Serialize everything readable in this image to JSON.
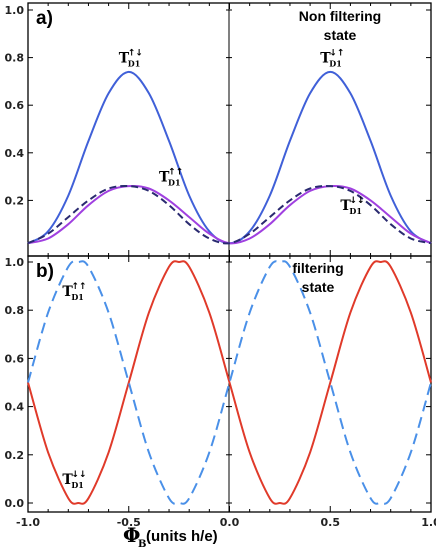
{
  "chart_data": [
    {
      "type": "line",
      "panel_label": "a)",
      "annotation": "Non filtering\nstate",
      "xlim": [
        -1,
        1
      ],
      "ylim": [
        0,
        1
      ],
      "yticks": [
        "0.2",
        "0.4",
        "0.6",
        "0.8",
        "1.0"
      ],
      "colors": {
        "blue": "#4060d8",
        "purple": "#a040e0",
        "navy": "#2a2a70"
      },
      "curve_labels": [
        {
          "T": "T",
          "arrows": "↑↓",
          "sub": "D1",
          "at": [
            -0.5,
            0.8
          ]
        },
        {
          "T": "T",
          "arrows": "↑↑",
          "sub": "D1",
          "at": [
            -0.3,
            0.3
          ]
        },
        {
          "T": "T",
          "arrows": "↓↑",
          "sub": "D1",
          "at": [
            0.5,
            0.8
          ]
        },
        {
          "T": "T",
          "arrows": "↓↓",
          "sub": "D1",
          "at": [
            0.6,
            0.18
          ]
        }
      ],
      "series": [
        {
          "style": "solid",
          "color": "#4060d8",
          "x": [
            -1.0,
            -0.9,
            -0.8,
            -0.7,
            -0.6,
            -0.5,
            -0.4,
            -0.3,
            -0.2,
            -0.1,
            0.0,
            0.1,
            0.2,
            0.3,
            0.4,
            0.5,
            0.6,
            0.7,
            0.8,
            0.9,
            1.0
          ],
          "y": [
            0.02,
            0.07,
            0.22,
            0.45,
            0.65,
            0.74,
            0.65,
            0.45,
            0.22,
            0.07,
            0.02,
            0.07,
            0.22,
            0.45,
            0.65,
            0.74,
            0.65,
            0.45,
            0.22,
            0.07,
            0.02
          ]
        },
        {
          "style": "solid",
          "color": "#a040e0",
          "x": [
            -1.0,
            -0.9,
            -0.8,
            -0.7,
            -0.6,
            -0.5,
            -0.4,
            -0.3,
            -0.2,
            -0.1,
            0.0,
            0.1,
            0.2,
            0.3,
            0.4,
            0.5,
            0.6,
            0.7,
            0.8,
            0.9,
            1.0
          ],
          "y": [
            0.02,
            0.04,
            0.1,
            0.18,
            0.24,
            0.26,
            0.25,
            0.2,
            0.13,
            0.06,
            0.02,
            0.04,
            0.1,
            0.18,
            0.24,
            0.26,
            0.25,
            0.2,
            0.13,
            0.06,
            0.02
          ]
        },
        {
          "style": "dashed",
          "color": "#2a2a70",
          "x": [
            -1.0,
            -0.9,
            -0.8,
            -0.7,
            -0.6,
            -0.5,
            -0.4,
            -0.3,
            -0.2,
            -0.1,
            0.0,
            0.1,
            0.2,
            0.3,
            0.4,
            0.5,
            0.6,
            0.7,
            0.8,
            0.9,
            1.0
          ],
          "y": [
            0.02,
            0.06,
            0.13,
            0.2,
            0.25,
            0.26,
            0.24,
            0.18,
            0.1,
            0.04,
            0.02,
            0.06,
            0.13,
            0.2,
            0.25,
            0.26,
            0.24,
            0.18,
            0.1,
            0.04,
            0.02
          ]
        }
      ]
    },
    {
      "type": "line",
      "panel_label": "b)",
      "annotation": "filtering\nstate",
      "xlabel": {
        "symbol": "Φ",
        "sub": "B",
        "text": "(units h/e)"
      },
      "xlim": [
        -1,
        1
      ],
      "ylim": [
        0,
        1
      ],
      "xticks": [
        "-1.0",
        "-0.5",
        "0.0",
        "0.5",
        "1.0"
      ],
      "yticks": [
        "0.0",
        "0.2",
        "0.4",
        "0.6",
        "0.8",
        "1.0"
      ],
      "curve_labels": [
        {
          "T": "T",
          "arrows": "↑↑",
          "sub": "D1",
          "at": [
            -0.78,
            0.88
          ]
        },
        {
          "T": "T",
          "arrows": "↓↓",
          "sub": "D1",
          "at": [
            -0.78,
            0.1
          ]
        }
      ],
      "series": [
        {
          "style": "solid",
          "color": "#e03a2a",
          "x": [
            -1.0,
            -0.9,
            -0.8,
            -0.75,
            -0.7,
            -0.6,
            -0.5,
            -0.4,
            -0.3,
            -0.25,
            -0.2,
            -0.1,
            0.0,
            0.1,
            0.2,
            0.25,
            0.3,
            0.4,
            0.5,
            0.6,
            0.7,
            0.75,
            0.8,
            0.9,
            1.0
          ],
          "y": [
            0.5,
            0.21,
            0.02,
            0.0,
            0.02,
            0.21,
            0.5,
            0.79,
            0.98,
            1.0,
            0.98,
            0.79,
            0.5,
            0.21,
            0.02,
            0.0,
            0.02,
            0.21,
            0.5,
            0.79,
            0.98,
            1.0,
            0.98,
            0.79,
            0.5
          ]
        },
        {
          "style": "dashed",
          "color": "#4a90e8",
          "x": [
            -1.0,
            -0.9,
            -0.8,
            -0.75,
            -0.7,
            -0.6,
            -0.5,
            -0.4,
            -0.3,
            -0.25,
            -0.2,
            -0.1,
            0.0,
            0.1,
            0.2,
            0.25,
            0.3,
            0.4,
            0.5,
            0.6,
            0.7,
            0.75,
            0.8,
            0.9,
            1.0
          ],
          "y": [
            0.5,
            0.79,
            0.98,
            1.0,
            0.98,
            0.79,
            0.5,
            0.21,
            0.02,
            0.0,
            0.02,
            0.21,
            0.5,
            0.79,
            0.98,
            1.0,
            0.98,
            0.79,
            0.5,
            0.21,
            0.02,
            0.0,
            0.02,
            0.21,
            0.5
          ]
        }
      ]
    }
  ]
}
